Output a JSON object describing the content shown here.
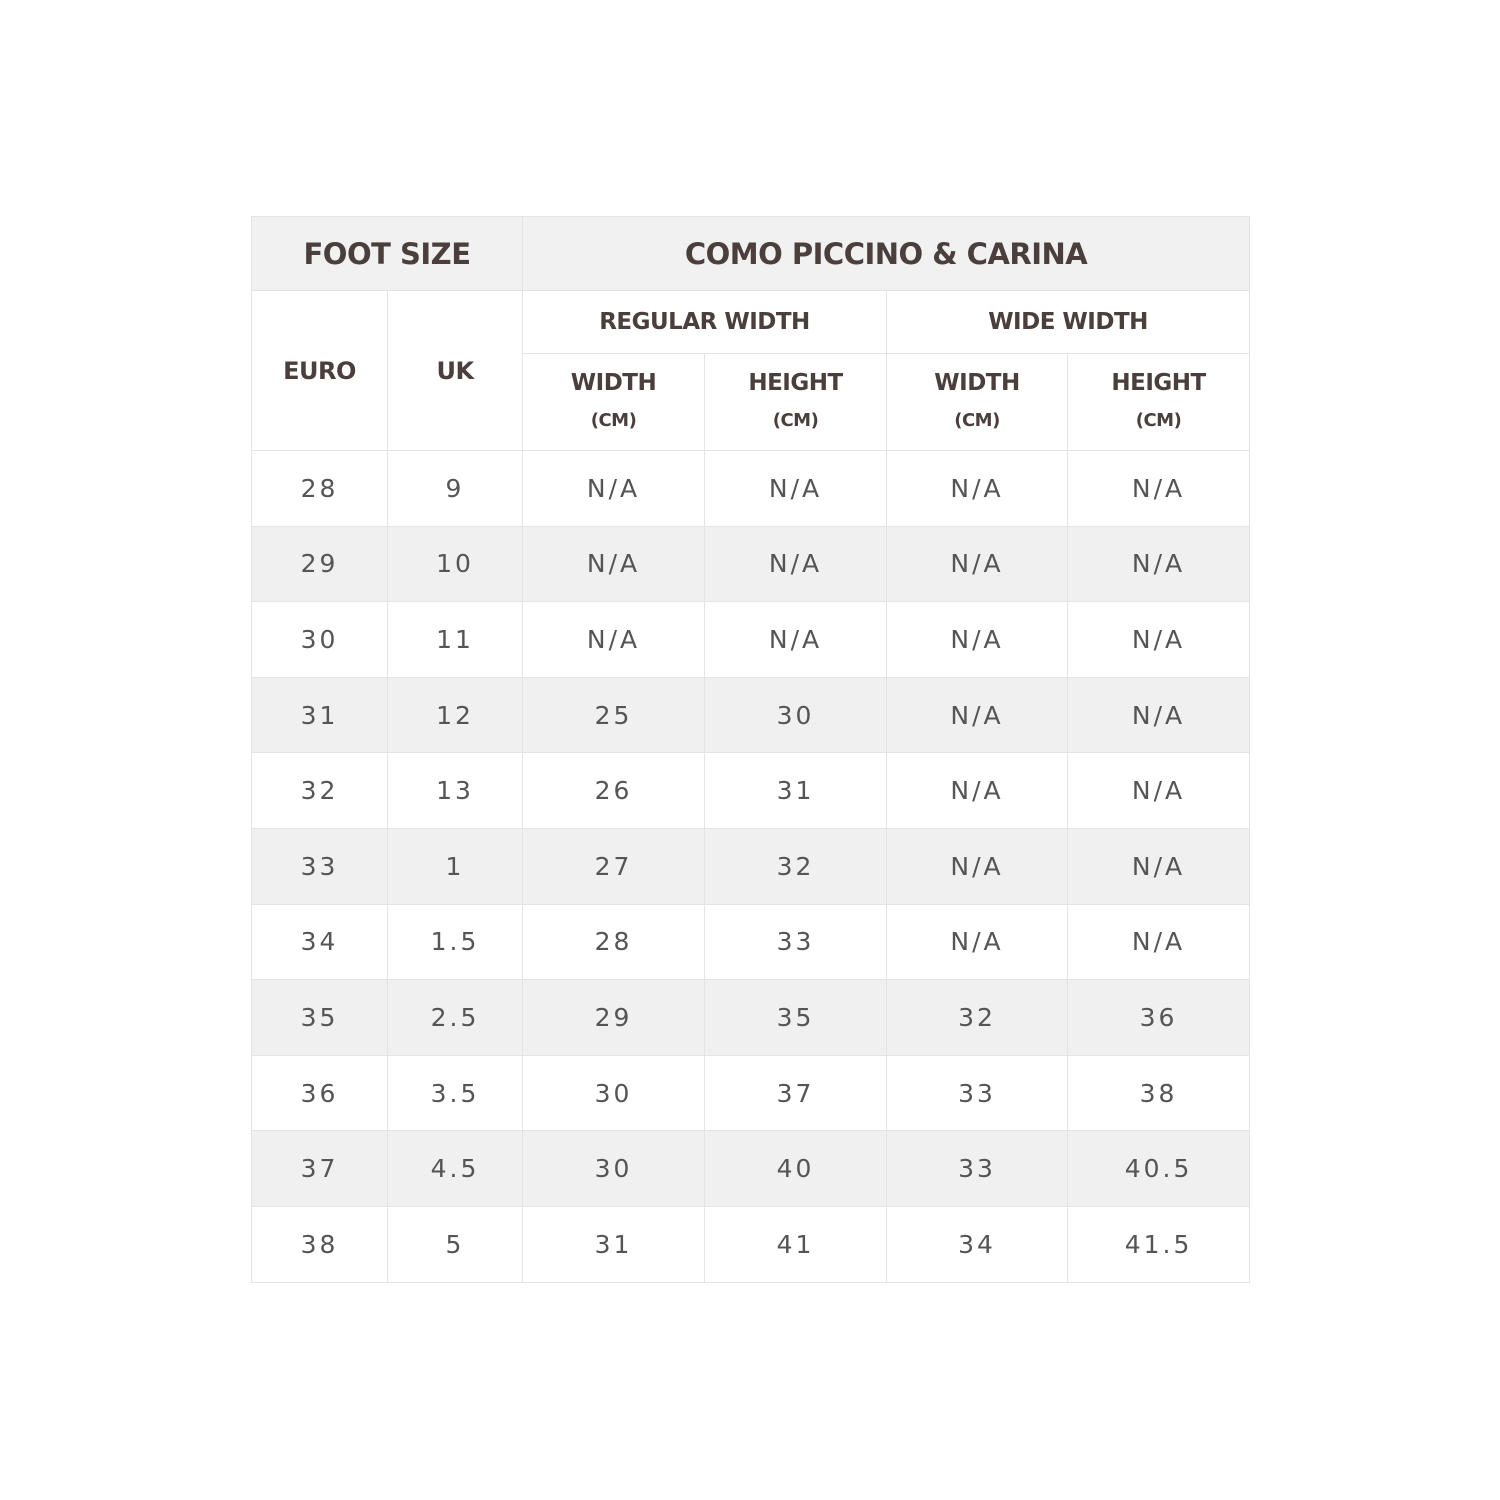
{
  "header": {
    "foot_size": "FOOT SIZE",
    "model": "COMO PICCINO & CARINA",
    "euro": "EURO",
    "uk": "UK",
    "regular_width": "REGULAR WIDTH",
    "wide_width": "WIDE WIDTH",
    "width": "WIDTH",
    "height": "HEIGHT",
    "unit": "(CM)"
  },
  "rows": [
    [
      "28",
      "9",
      "N/A",
      "N/A",
      "N/A",
      "N/A"
    ],
    [
      "29",
      "10",
      "N/A",
      "N/A",
      "N/A",
      "N/A"
    ],
    [
      "30",
      "11",
      "N/A",
      "N/A",
      "N/A",
      "N/A"
    ],
    [
      "31",
      "12",
      "25",
      "30",
      "N/A",
      "N/A"
    ],
    [
      "32",
      "13",
      "26",
      "31",
      "N/A",
      "N/A"
    ],
    [
      "33",
      "1",
      "27",
      "32",
      "N/A",
      "N/A"
    ],
    [
      "34",
      "1.5",
      "28",
      "33",
      "N/A",
      "N/A"
    ],
    [
      "35",
      "2.5",
      "29",
      "35",
      "32",
      "36"
    ],
    [
      "36",
      "3.5",
      "30",
      "37",
      "33",
      "38"
    ],
    [
      "37",
      "4.5",
      "30",
      "40",
      "33",
      "40.5"
    ],
    [
      "38",
      "5",
      "31",
      "41",
      "34",
      "41.5"
    ]
  ],
  "colors": {
    "header_text": "#4a3f3c",
    "cell_text": "#555555",
    "stripe": "#f0f0f0",
    "border": "#e4e4e4"
  }
}
